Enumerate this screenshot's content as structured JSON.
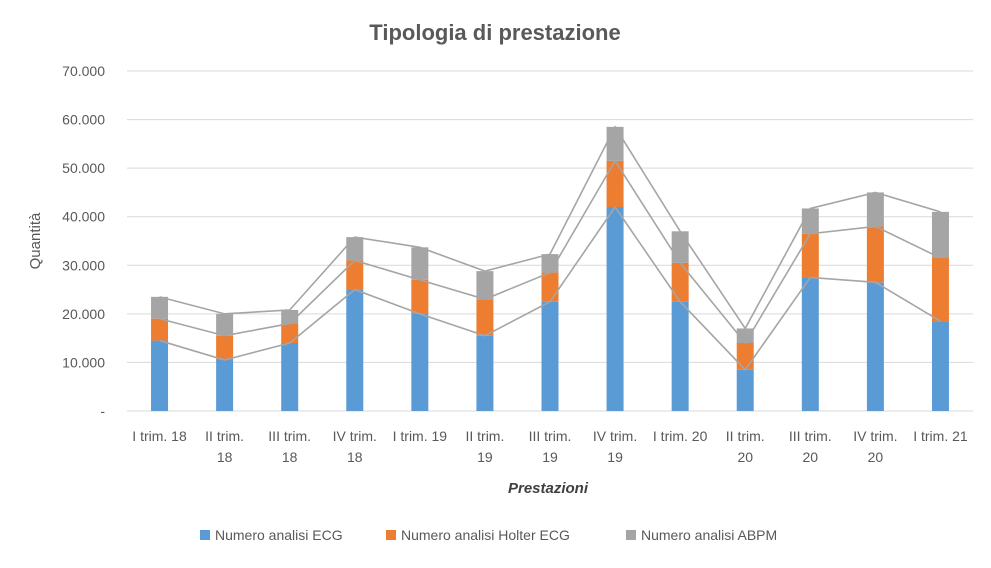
{
  "chart_data": {
    "type": "bar",
    "stacked": true,
    "title": "Tipologia di prestazione",
    "xlabel": "Prestazioni",
    "ylabel": "Quantità",
    "ylim": [
      0,
      70000
    ],
    "yticks": [
      0,
      10000,
      20000,
      30000,
      40000,
      50000,
      60000,
      70000
    ],
    "ytick_labels": [
      "-",
      "10.000",
      "20.000",
      "30.000",
      "40.000",
      "50.000",
      "60.000",
      "70.000"
    ],
    "grid": true,
    "legend_position": "bottom",
    "series_lines": true,
    "categories": [
      [
        "I trim. 18"
      ],
      [
        "II trim.",
        "18"
      ],
      [
        "III trim.",
        "18"
      ],
      [
        "IV trim.",
        "18"
      ],
      [
        "I trim. 19"
      ],
      [
        "II trim.",
        "19"
      ],
      [
        "III trim.",
        "19"
      ],
      [
        "IV trim.",
        "19"
      ],
      [
        "I trim. 20"
      ],
      [
        "II trim.",
        "20"
      ],
      [
        "III trim.",
        "20"
      ],
      [
        "IV trim.",
        "20"
      ],
      [
        "I trim. 21"
      ]
    ],
    "series": [
      {
        "name": "Numero analisi ECG",
        "color": "#5B9BD5",
        "values": [
          14500,
          10500,
          14000,
          25000,
          20000,
          15500,
          22500,
          42000,
          22500,
          8500,
          27500,
          26500,
          18500
        ]
      },
      {
        "name": "Numero analisi Holter ECG",
        "color": "#ED7D31",
        "values": [
          4500,
          5000,
          4000,
          6000,
          7000,
          7500,
          6000,
          9500,
          8000,
          5500,
          9000,
          11500,
          13000
        ]
      },
      {
        "name": "Numero analisi ABPM",
        "color": "#A5A5A5",
        "values": [
          4500,
          4500,
          2800,
          4800,
          6700,
          5800,
          3800,
          7000,
          6500,
          3000,
          5200,
          7000,
          9500
        ]
      }
    ],
    "line_color": "#A5A5A5",
    "grid_color": "#D9D9D9"
  }
}
